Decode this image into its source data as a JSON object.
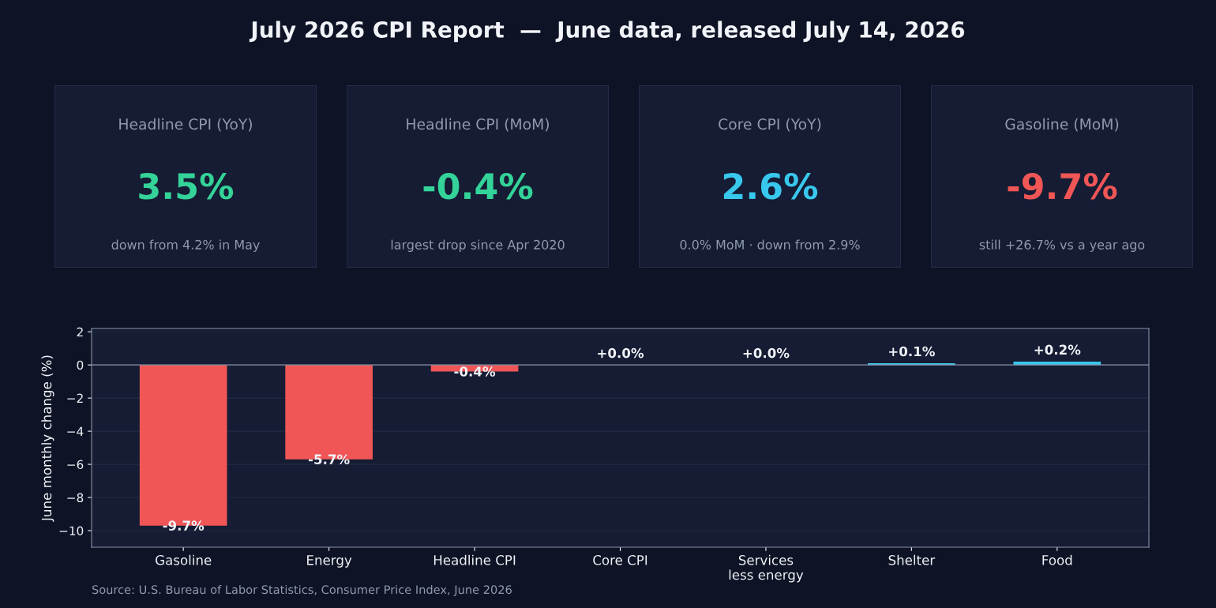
{
  "chart_data": [
    {
      "type": "other",
      "title": "July 2026 CPI Report  —  June data, released July 14, 2026"
    },
    {
      "type": "other",
      "title": "Headline CPI (YoY)",
      "annotations": [
        "3.5%",
        "down from 4.2% in May"
      ],
      "color": "#34d399"
    },
    {
      "type": "other",
      "title": "Headline CPI (MoM)",
      "annotations": [
        "-0.4%",
        "largest drop since Apr 2020"
      ],
      "color": "#34d399"
    },
    {
      "type": "other",
      "title": "Core CPI (YoY)",
      "annotations": [
        "2.6%",
        "0.0% MoM · down from 2.9%"
      ],
      "color": "#38c8ee"
    },
    {
      "type": "other",
      "title": "Gasoline (MoM)",
      "annotations": [
        "-9.7%",
        "still +26.7% vs a year ago"
      ],
      "color": "#f05656"
    },
    {
      "type": "bar",
      "ylabel": "June monthly change (%)",
      "categories": [
        "Gasoline",
        "Energy",
        "Headline CPI",
        "Core CPI",
        "Services\nless energy",
        "Shelter",
        "Food"
      ],
      "values": [
        -9.7,
        -5.7,
        -0.4,
        0.0,
        0.0,
        0.1,
        0.2
      ],
      "colors": [
        "#f05656",
        "#f05656",
        "#f05656",
        "#38c8ee",
        "#38c8ee",
        "#38c8ee",
        "#38c8ee"
      ],
      "value_labels": [
        "-9.7%",
        "-5.7%",
        "-0.4%",
        "+0.0%",
        "+0.0%",
        "+0.1%",
        "+0.2%"
      ],
      "ylim": [
        -11,
        2.2
      ],
      "yticks": [
        {
          "value": 2,
          "label": "2"
        },
        {
          "value": 0,
          "label": "0"
        },
        {
          "value": -2,
          "label": "−2"
        },
        {
          "value": -4,
          "label": "−4"
        },
        {
          "value": -6,
          "label": "−6"
        },
        {
          "value": -8,
          "label": "−8"
        },
        {
          "value": -10,
          "label": "−10"
        }
      ],
      "grid": "y",
      "ref_lines": [
        {
          "axis": "y",
          "value": 0,
          "color": "#8a93a8"
        }
      ],
      "annotations": [
        "Source: U.S. Bureau of Labor Statistics, Consumer Price Index, June 2026"
      ]
    }
  ]
}
